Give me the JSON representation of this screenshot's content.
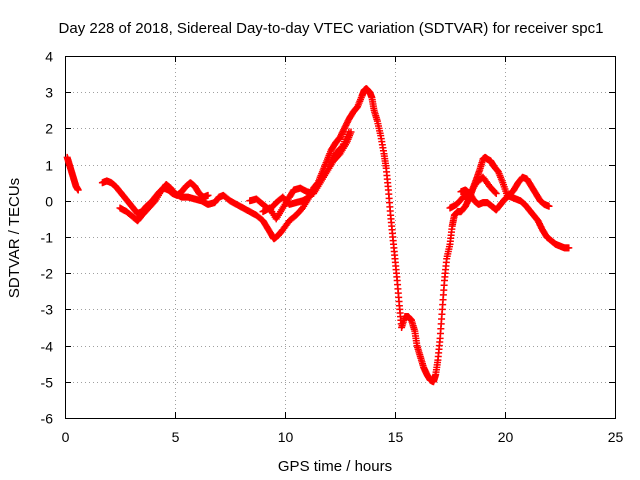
{
  "chart_data": {
    "type": "scatter",
    "title": "Day 228 of 2018, Sidereal Day-to-day VTEC variation (SDTVAR) for receiver spc1",
    "xlabel": "GPS time / hours",
    "ylabel": "SDTVAR / TECUs",
    "xlim": [
      0,
      25
    ],
    "ylim": [
      -6,
      4
    ],
    "xticks": [
      0,
      5,
      10,
      15,
      20,
      25
    ],
    "yticks": [
      -6,
      -5,
      -4,
      -3,
      -2,
      -1,
      0,
      1,
      2,
      3,
      4
    ],
    "grid": true,
    "legend": "none",
    "marker": "plus",
    "series_color": "#ff0000",
    "series": [
      {
        "points": [
          [
            0.1,
            1.2
          ],
          [
            0.2,
            1.0
          ],
          [
            0.3,
            0.8
          ],
          [
            0.4,
            0.6
          ],
          [
            0.5,
            0.4
          ],
          [
            0.6,
            0.3
          ]
        ]
      },
      {
        "points": [
          [
            1.7,
            0.5
          ],
          [
            1.9,
            0.55
          ],
          [
            2.1,
            0.5
          ],
          [
            2.3,
            0.4
          ],
          [
            2.5,
            0.25
          ],
          [
            2.7,
            0.1
          ],
          [
            2.9,
            -0.05
          ],
          [
            3.1,
            -0.2
          ],
          [
            3.3,
            -0.35
          ],
          [
            3.5,
            -0.3
          ],
          [
            3.7,
            -0.15
          ],
          [
            3.9,
            -0.05
          ],
          [
            4.1,
            0.1
          ],
          [
            4.3,
            0.25
          ],
          [
            4.5,
            0.35
          ],
          [
            4.7,
            0.3
          ],
          [
            4.9,
            0.2
          ],
          [
            5.1,
            0.15
          ],
          [
            5.3,
            0.25
          ],
          [
            5.5,
            0.4
          ],
          [
            5.7,
            0.5
          ],
          [
            5.9,
            0.4
          ],
          [
            6.1,
            0.2
          ],
          [
            6.3,
            0.1
          ],
          [
            6.5,
            0.15
          ]
        ]
      },
      {
        "points": [
          [
            2.5,
            -0.2
          ],
          [
            2.8,
            -0.3
          ],
          [
            3.1,
            -0.45
          ],
          [
            3.3,
            -0.55
          ],
          [
            3.5,
            -0.4
          ],
          [
            3.8,
            -0.2
          ],
          [
            4.1,
            0.0
          ],
          [
            4.4,
            0.3
          ],
          [
            4.6,
            0.45
          ],
          [
            4.8,
            0.35
          ],
          [
            5.0,
            0.2
          ],
          [
            5.3,
            0.1
          ],
          [
            5.6,
            0.1
          ],
          [
            5.9,
            0.05
          ],
          [
            6.2,
            0.0
          ],
          [
            6.5,
            -0.1
          ],
          [
            6.8,
            -0.05
          ],
          [
            7.0,
            0.1
          ],
          [
            7.2,
            0.15
          ],
          [
            7.5,
            0.0
          ],
          [
            7.8,
            -0.1
          ],
          [
            8.1,
            -0.2
          ],
          [
            8.4,
            -0.3
          ],
          [
            8.7,
            -0.4
          ],
          [
            9.0,
            -0.55
          ],
          [
            9.2,
            -0.75
          ],
          [
            9.4,
            -0.95
          ],
          [
            9.5,
            -1.05
          ],
          [
            9.7,
            -0.95
          ],
          [
            9.9,
            -0.8
          ],
          [
            10.2,
            -0.55
          ],
          [
            10.5,
            -0.4
          ],
          [
            10.8,
            -0.2
          ],
          [
            11.1,
            0.1
          ],
          [
            11.3,
            0.35
          ],
          [
            11.5,
            0.5
          ],
          [
            11.7,
            0.8
          ],
          [
            11.9,
            1.1
          ],
          [
            12.1,
            1.4
          ],
          [
            12.3,
            1.6
          ],
          [
            12.5,
            1.75
          ],
          [
            12.7,
            2.0
          ],
          [
            12.9,
            2.25
          ],
          [
            13.1,
            2.45
          ],
          [
            13.3,
            2.6
          ],
          [
            13.5,
            2.9
          ],
          [
            13.6,
            3.05
          ],
          [
            13.7,
            3.1
          ],
          [
            13.85,
            3.0
          ],
          [
            13.95,
            2.85
          ],
          [
            14.05,
            2.5
          ],
          [
            14.2,
            2.2
          ],
          [
            14.35,
            1.8
          ],
          [
            14.5,
            1.3
          ],
          [
            14.6,
            0.9
          ],
          [
            14.7,
            0.3
          ],
          [
            14.8,
            -0.4
          ],
          [
            14.9,
            -1.0
          ],
          [
            15.0,
            -1.6
          ],
          [
            15.1,
            -2.2
          ],
          [
            15.2,
            -2.9
          ],
          [
            15.3,
            -3.5
          ],
          [
            15.45,
            -3.2
          ],
          [
            15.6,
            -3.2
          ],
          [
            15.75,
            -3.3
          ],
          [
            15.9,
            -3.6
          ],
          [
            16.0,
            -4.0
          ],
          [
            16.15,
            -4.3
          ],
          [
            16.3,
            -4.6
          ],
          [
            16.45,
            -4.8
          ],
          [
            16.6,
            -4.95
          ],
          [
            16.75,
            -5.0
          ],
          [
            16.85,
            -4.8
          ],
          [
            16.95,
            -4.4
          ],
          [
            17.05,
            -3.8
          ],
          [
            17.15,
            -3.0
          ],
          [
            17.25,
            -2.2
          ],
          [
            17.35,
            -1.6
          ],
          [
            17.5,
            -1.2
          ],
          [
            17.6,
            -0.7
          ],
          [
            17.7,
            -0.4
          ],
          [
            17.85,
            -0.3
          ],
          [
            18.0,
            -0.3
          ],
          [
            18.2,
            -0.15
          ],
          [
            18.4,
            0.1
          ],
          [
            18.55,
            0.35
          ],
          [
            18.7,
            0.6
          ],
          [
            18.85,
            0.85
          ],
          [
            19.0,
            1.15
          ],
          [
            19.1,
            1.2
          ],
          [
            19.2,
            1.15
          ],
          [
            19.35,
            1.1
          ],
          [
            19.5,
            0.95
          ],
          [
            19.7,
            0.8
          ],
          [
            19.9,
            0.5
          ],
          [
            20.1,
            0.15
          ],
          [
            20.3,
            0.1
          ],
          [
            20.5,
            0.05
          ],
          [
            20.7,
            0.0
          ],
          [
            20.9,
            -0.1
          ],
          [
            21.1,
            -0.25
          ],
          [
            21.3,
            -0.4
          ],
          [
            21.5,
            -0.55
          ],
          [
            21.7,
            -0.8
          ],
          [
            21.9,
            -1.0
          ],
          [
            22.1,
            -1.1
          ],
          [
            22.3,
            -1.2
          ],
          [
            22.5,
            -1.25
          ],
          [
            22.7,
            -1.3
          ],
          [
            22.9,
            -1.3
          ]
        ]
      },
      {
        "points": [
          [
            9.0,
            -0.3
          ],
          [
            9.3,
            -0.2
          ],
          [
            9.6,
            -0.5
          ],
          [
            9.9,
            -0.2
          ],
          [
            10.2,
            0.1
          ],
          [
            10.4,
            0.3
          ],
          [
            10.7,
            0.35
          ],
          [
            11.0,
            0.25
          ],
          [
            11.3,
            0.2
          ],
          [
            11.6,
            0.5
          ],
          [
            11.9,
            0.8
          ],
          [
            12.2,
            1.1
          ],
          [
            12.5,
            1.3
          ],
          [
            12.8,
            1.6
          ],
          [
            13.0,
            1.9
          ]
        ]
      },
      {
        "points": [
          [
            8.4,
            0.0
          ],
          [
            8.7,
            0.05
          ],
          [
            9.0,
            -0.1
          ],
          [
            9.3,
            -0.25
          ],
          [
            9.6,
            -0.05
          ],
          [
            9.9,
            0.1
          ],
          [
            10.2,
            -0.1
          ],
          [
            10.5,
            -0.05
          ],
          [
            10.8,
            0.0
          ],
          [
            11.1,
            0.1
          ]
        ]
      },
      {
        "points": [
          [
            12.0,
            1.0
          ],
          [
            12.3,
            1.3
          ],
          [
            12.6,
            1.5
          ],
          [
            12.9,
            1.9
          ]
        ]
      },
      {
        "points": [
          [
            18.0,
            0.25
          ],
          [
            18.2,
            0.3
          ],
          [
            18.4,
            0.2
          ],
          [
            18.6,
            0.0
          ],
          [
            18.8,
            -0.1
          ],
          [
            19.0,
            -0.05
          ],
          [
            19.2,
            -0.05
          ],
          [
            19.4,
            -0.15
          ],
          [
            19.6,
            -0.25
          ],
          [
            19.8,
            -0.1
          ],
          [
            20.0,
            0.05
          ],
          [
            20.2,
            0.15
          ],
          [
            20.4,
            0.3
          ],
          [
            20.6,
            0.5
          ],
          [
            20.8,
            0.65
          ],
          [
            21.0,
            0.6
          ],
          [
            21.2,
            0.4
          ],
          [
            21.4,
            0.2
          ],
          [
            21.6,
            0.0
          ],
          [
            21.8,
            -0.1
          ],
          [
            22.0,
            -0.15
          ]
        ]
      },
      {
        "points": [
          [
            17.5,
            -0.2
          ],
          [
            17.8,
            -0.1
          ],
          [
            18.1,
            0.1
          ],
          [
            18.4,
            0.2
          ],
          [
            18.7,
            0.5
          ],
          [
            19.0,
            0.65
          ],
          [
            19.3,
            0.4
          ],
          [
            19.6,
            0.2
          ]
        ]
      }
    ]
  }
}
